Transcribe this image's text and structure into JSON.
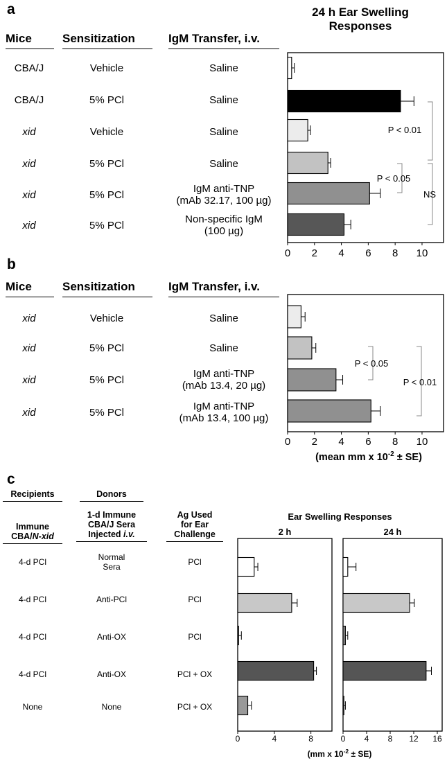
{
  "panel_a": {
    "letter": "a",
    "headers": {
      "mice": "Mice",
      "sensitization": "Sensitization",
      "transfer": "IgM Transfer, i.v."
    },
    "chart_title_line1": "24 h Ear Swelling",
    "chart_title_line2": "Responses",
    "rows": [
      {
        "mice": "CBA/J",
        "mice_italic": false,
        "sens": "Vehicle",
        "tr1": "Saline",
        "tr2": ""
      },
      {
        "mice": "CBA/J",
        "mice_italic": false,
        "sens": "5% PCl",
        "tr1": "Saline",
        "tr2": ""
      },
      {
        "mice": "xid",
        "mice_italic": true,
        "sens": "Vehicle",
        "tr1": "Saline",
        "tr2": ""
      },
      {
        "mice": "xid",
        "mice_italic": true,
        "sens": "5% PCl",
        "tr1": "Saline",
        "tr2": ""
      },
      {
        "mice": "xid",
        "mice_italic": true,
        "sens": "5% PCl",
        "tr1": "IgM anti-TNP",
        "tr2": "(mAb 32.17, 100 µg)"
      },
      {
        "mice": "xid",
        "mice_italic": true,
        "sens": "5% PCl",
        "tr1": "Non-specific IgM",
        "tr2": "(100 µg)"
      }
    ],
    "annotations": [
      "P < 0.01",
      "P < 0.05",
      "NS"
    ]
  },
  "panel_b": {
    "letter": "b",
    "headers": {
      "mice": "Mice",
      "sensitization": "Sensitization",
      "transfer": "IgM Transfer, i.v."
    },
    "rows": [
      {
        "mice": "xid",
        "sens": "Vehicle",
        "tr1": "Saline",
        "tr2": ""
      },
      {
        "mice": "xid",
        "sens": "5% PCl",
        "tr1": "Saline",
        "tr2": ""
      },
      {
        "mice": "xid",
        "sens": "5% PCl",
        "tr1": "IgM anti-TNP",
        "tr2": "(mAb 13.4, 20 µg)"
      },
      {
        "mice": "xid",
        "sens": "5% PCl",
        "tr1": "IgM anti-TNP",
        "tr2": "(mAb 13.4, 100 µg)"
      }
    ],
    "annotations": [
      "P < 0.05",
      "P < 0.01"
    ]
  },
  "panel_c": {
    "letter": "c",
    "group_headers": {
      "recipients": "Recipients",
      "donors": "Donors"
    },
    "col_headers": {
      "recipients_l1": "Immune",
      "recipients_l2a": "CBA/",
      "recipients_l2b": "N-xid",
      "donors_l1": "1-d Immune",
      "donors_l2": "CBA/J Sera",
      "donors_l3a": "Injected ",
      "donors_l3b": "i.v.",
      "ag_l1": "Ag Used",
      "ag_l2": "for Ear",
      "ag_l3": "Challenge"
    },
    "chart_title": "Ear Swelling Responses",
    "sub_titles": [
      "2 h",
      "24 h"
    ],
    "rows": [
      {
        "recipients": "4-d PCl",
        "donors1": "Normal",
        "donors2": "Sera",
        "ag": "PCl"
      },
      {
        "recipients": "4-d PCl",
        "donors1": "Anti-PCl",
        "donors2": "",
        "ag": "PCl"
      },
      {
        "recipients": "4-d PCl",
        "donors1": "Anti-OX",
        "donors2": "",
        "ag": "PCl"
      },
      {
        "recipients": "4-d PCl",
        "donors1": "Anti-OX",
        "donors2": "",
        "ag": "PCl + OX"
      },
      {
        "recipients": "None",
        "donors1": "None",
        "donors2": "",
        "ag": "PCl + OX"
      }
    ]
  },
  "chart_data": [
    {
      "type": "bar",
      "orientation": "horizontal",
      "title": "24 h Ear Swelling Responses",
      "categories": [
        "CBA/J Vehicle Saline",
        "CBA/J 5% PCl Saline",
        "xid Vehicle Saline",
        "xid 5% PCl Saline",
        "xid 5% PCl IgM anti-TNP (mAb 32.17, 100 µg)",
        "xid 5% PCl Non-specific IgM (100 µg)"
      ],
      "values": [
        0.3,
        8.4,
        1.5,
        3.0,
        6.1,
        4.2
      ],
      "errors": [
        0.2,
        1.0,
        0.2,
        0.2,
        0.8,
        0.5
      ],
      "colors": [
        "#ffffff",
        "#000000",
        "#ececec",
        "#c2c2c2",
        "#909090",
        "#575757"
      ],
      "xlim": [
        0,
        11.6
      ],
      "xticks": [
        0,
        2,
        4,
        6,
        8,
        10
      ]
    },
    {
      "type": "bar",
      "orientation": "horizontal",
      "xlabel_parts": [
        "(mean mm x 10",
        "-2",
        " ± SE)"
      ],
      "categories": [
        "xid Vehicle Saline",
        "xid 5% PCl Saline",
        "xid 5% PCl IgM anti-TNP (mAb 13.4, 20 µg)",
        "xid 5% PCl IgM anti-TNP (mAb 13.4, 100 µg)"
      ],
      "values": [
        1.0,
        1.8,
        3.6,
        6.2
      ],
      "errors": [
        0.3,
        0.3,
        0.5,
        0.7
      ],
      "colors": [
        "#ececec",
        "#c2c2c2",
        "#909090",
        "#909090"
      ],
      "xlim": [
        0,
        11.6
      ],
      "xticks": [
        0,
        2,
        4,
        6,
        8,
        10
      ]
    },
    {
      "type": "bar",
      "orientation": "horizontal",
      "title": "2 h",
      "values": [
        1.8,
        5.9,
        0.1,
        8.3,
        1.1
      ],
      "errors": [
        0.4,
        0.6,
        0.3,
        0.3,
        0.4
      ],
      "colors": [
        "#ffffff",
        "#c8c8c8",
        "#888888",
        "#555555",
        "#999999"
      ],
      "xlim": [
        0,
        10.3
      ],
      "xticks": [
        0,
        4,
        8
      ]
    },
    {
      "type": "bar",
      "orientation": "horizontal",
      "title": "24 h",
      "xlabel_parts": [
        "(mm x 10",
        "-2",
        " ± SE)"
      ],
      "values": [
        0.8,
        11.3,
        0.4,
        14.1,
        0.1
      ],
      "errors": [
        1.4,
        0.8,
        0.4,
        0.9,
        0.3
      ],
      "colors": [
        "#ffffff",
        "#c8c8c8",
        "#888888",
        "#555555",
        "#999999"
      ],
      "xlim": [
        0,
        16
      ],
      "xticks": [
        0,
        4,
        8,
        12,
        16
      ]
    }
  ]
}
